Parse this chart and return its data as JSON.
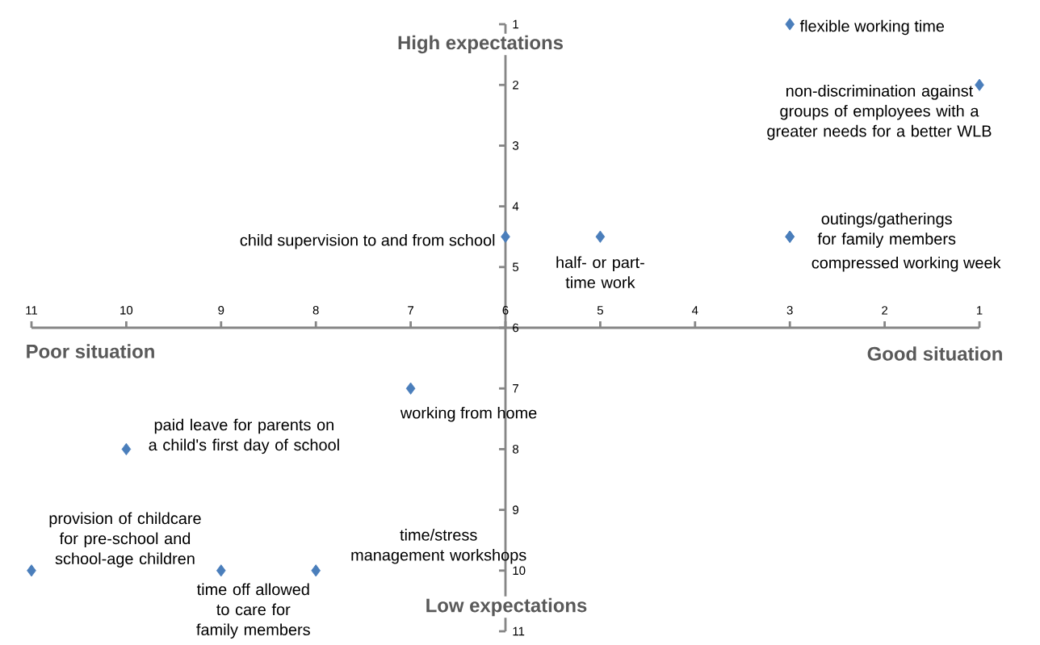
{
  "chart_data": {
    "type": "scatter",
    "marker": "diamond",
    "color": "#4a7ebb",
    "x": [
      3,
      1,
      3,
      3,
      6,
      5,
      7,
      10,
      11,
      9,
      8
    ],
    "values": [
      1,
      2,
      4.5,
      4.5,
      4.5,
      4.5,
      7,
      8,
      10,
      10,
      10
    ],
    "xlim": [
      11,
      1
    ],
    "ylim": [
      11,
      1
    ],
    "xticks": [
      1,
      2,
      3,
      4,
      5,
      6,
      7,
      8,
      9,
      10,
      11
    ],
    "yticks": [
      1,
      2,
      3,
      4,
      5,
      6,
      7,
      8,
      9,
      10,
      11
    ],
    "annotations": [
      {
        "text": "flexible working time",
        "x": 3,
        "y": 1
      },
      {
        "text": "non-discrimination against groups of employees with a greater needs for a better WLB",
        "x": 1,
        "y": 2
      },
      {
        "text": "outings/gatherings for family members",
        "x": 3,
        "y": 4.5
      },
      {
        "text": "compressed working week",
        "x": 3,
        "y": 4.5
      },
      {
        "text": "child supervision to and from school",
        "x": 6,
        "y": 4.5
      },
      {
        "text": "half- or part-time work",
        "x": 5,
        "y": 4.5
      },
      {
        "text": "working from home",
        "x": 7,
        "y": 7
      },
      {
        "text": "paid leave for parents on a child's first day of school",
        "x": 10,
        "y": 8
      },
      {
        "text": "provision of childcare for pre-school and school-age children",
        "x": 11,
        "y": 10
      },
      {
        "text": "time off allowed to care for family members",
        "x": 9,
        "y": 10
      },
      {
        "text": "time/stress management workshops",
        "x": 8,
        "y": 10
      },
      "High expectations",
      "Low expectations",
      "Poor situation",
      "Good situation"
    ]
  }
}
